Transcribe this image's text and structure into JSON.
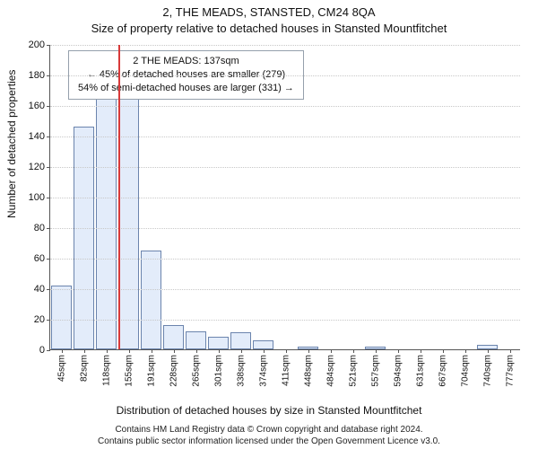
{
  "title_line1": "2, THE MEADS, STANSTED, CM24 8QA",
  "title_line2": "Size of property relative to detached houses in Stansted Mountfitchet",
  "ylabel": "Number of detached properties",
  "xlabel": "Distribution of detached houses by size in Stansted Mountfitchet",
  "footer_line1": "Contains HM Land Registry data © Crown copyright and database right 2024.",
  "footer_line2": "Contains public sector information licensed under the Open Government Licence v3.0.",
  "chart": {
    "type": "bar",
    "ylim": [
      0,
      200
    ],
    "ytick_step": 20,
    "plot_background": "#ffffff",
    "grid_color": "#c8c8c8",
    "axis_color": "#555555",
    "bar_fill": "#e3ecfa",
    "bar_border": "#6b84ad",
    "bar_width": 0.92,
    "marker": {
      "value_sqm": 137,
      "color": "#d83a3a",
      "position_index": 2.52
    },
    "annotation": {
      "line1": "2 THE MEADS: 137sqm",
      "line2": "← 45% of detached houses are smaller (279)",
      "line3": "54% of semi-detached houses are larger (331) →",
      "border_color": "#95a0ac",
      "background": "#ffffff"
    },
    "categories": [
      "45sqm",
      "82sqm",
      "118sqm",
      "155sqm",
      "191sqm",
      "228sqm",
      "265sqm",
      "301sqm",
      "338sqm",
      "374sqm",
      "411sqm",
      "448sqm",
      "484sqm",
      "521sqm",
      "557sqm",
      "594sqm",
      "631sqm",
      "667sqm",
      "704sqm",
      "740sqm",
      "777sqm"
    ],
    "values": [
      42,
      146,
      171,
      169,
      65,
      16,
      12,
      8,
      11,
      6,
      0,
      2,
      0,
      0,
      2,
      0,
      0,
      0,
      0,
      3,
      0
    ]
  },
  "typography": {
    "title_fontsize": 13,
    "axis_label_fontsize": 12,
    "tick_fontsize": 11,
    "xtick_fontsize": 10,
    "annotation_fontsize": 11,
    "footer_fontsize": 10,
    "font_family": "Arial, Helvetica, sans-serif"
  }
}
